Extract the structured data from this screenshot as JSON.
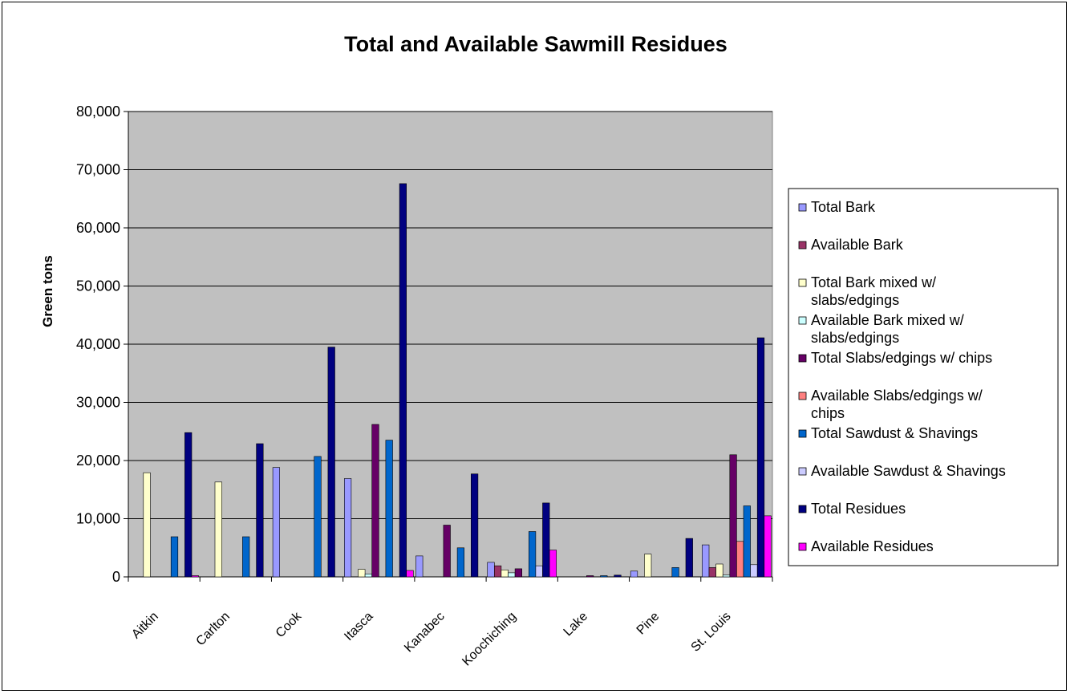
{
  "chart_data": {
    "type": "bar",
    "title": "Total and Available Sawmill Residues",
    "ylabel": "Green tons",
    "xlabel": "",
    "ylim": [
      0,
      80000
    ],
    "yticks": [
      0,
      10000,
      20000,
      30000,
      40000,
      50000,
      60000,
      70000,
      80000
    ],
    "ytick_labels": [
      "0",
      "10,000",
      "20,000",
      "30,000",
      "40,000",
      "50,000",
      "60,000",
      "70,000",
      "80,000"
    ],
    "grid": true,
    "legend_position": "right",
    "plot_background": "#c0c0c0",
    "categories": [
      "Aitkin",
      "Carlton",
      "Cook",
      "Itasca",
      "Kanabec",
      "Koochiching",
      "Lake",
      "Pine",
      "St. Louis"
    ],
    "series": [
      {
        "name": "Total  Bark",
        "color": "#9999ff",
        "values": [
          0,
          0,
          18800,
          16900,
          3600,
          2500,
          0,
          1000,
          5500
        ]
      },
      {
        "name": "Available Bark",
        "color": "#993366",
        "values": [
          0,
          0,
          0,
          0,
          0,
          1900,
          0,
          0,
          1600
        ]
      },
      {
        "name": "Total Bark mixed w/ slabs/edgings",
        "color": "#ffffcc",
        "values": [
          17900,
          16300,
          0,
          1300,
          0,
          1200,
          0,
          3900,
          2200
        ]
      },
      {
        "name": "Available Bark mixed w/ slabs/edgings",
        "color": "#ccffff",
        "values": [
          0,
          0,
          0,
          500,
          0,
          700,
          0,
          0,
          300
        ]
      },
      {
        "name": "Total Slabs/edgings w/ chips",
        "color": "#660066",
        "values": [
          0,
          0,
          0,
          26200,
          8900,
          1400,
          200,
          0,
          21000
        ]
      },
      {
        "name": "Available Slabs/edgings w/ chips",
        "color": "#ff8080",
        "values": [
          0,
          0,
          0,
          0,
          0,
          0,
          0,
          0,
          6100
        ]
      },
      {
        "name": "Total Sawdust & Shavings",
        "color": "#0066cc",
        "values": [
          6900,
          6900,
          20700,
          23500,
          5000,
          7800,
          200,
          1600,
          12200
        ]
      },
      {
        "name": "Available Sawdust & Shavings",
        "color": "#ccccff",
        "values": [
          0,
          0,
          0,
          0,
          0,
          1900,
          0,
          0,
          2100
        ]
      },
      {
        "name": "Total Residues",
        "color": "#000080",
        "values": [
          24800,
          22900,
          39500,
          67600,
          17700,
          12700,
          300,
          6600,
          41100
        ]
      },
      {
        "name": "Available Residues",
        "color": "#ff00ff",
        "values": [
          200,
          0,
          0,
          1100,
          0,
          4600,
          0,
          0,
          10500
        ]
      }
    ]
  }
}
